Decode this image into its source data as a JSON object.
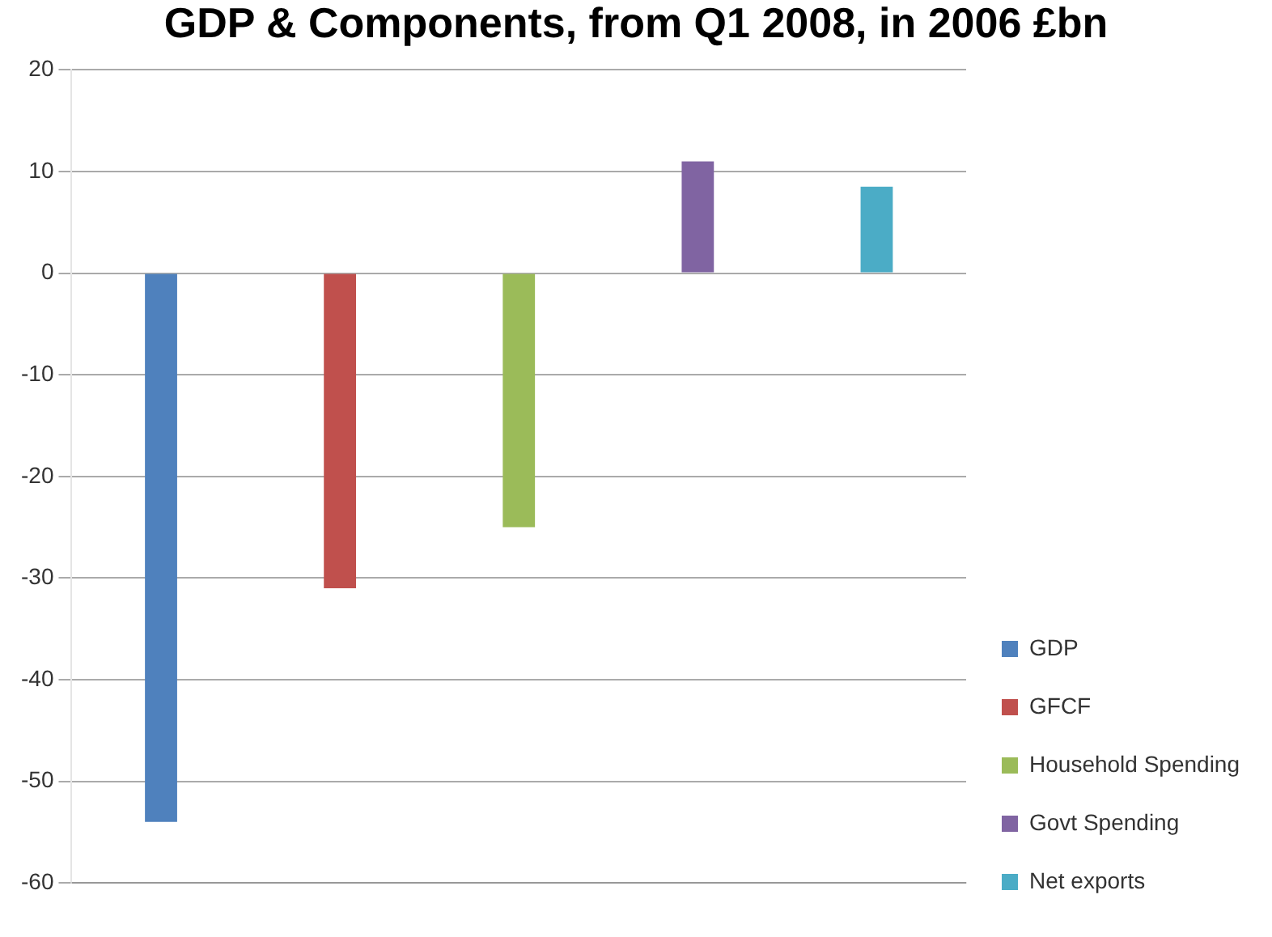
{
  "chart_data": {
    "type": "bar",
    "title": "GDP & Components, from Q1 2008, in 2006 £bn",
    "categories": [
      null,
      null,
      null,
      null,
      null
    ],
    "series": [
      {
        "name": "GDP",
        "color": "#4f81bd",
        "values": [
          -54,
          null,
          null,
          null,
          null
        ]
      },
      {
        "name": "GFCF",
        "color": "#c0504d",
        "values": [
          null,
          -31,
          null,
          null,
          null
        ]
      },
      {
        "name": "Household Spending",
        "color": "#9bbb59",
        "values": [
          null,
          null,
          -25,
          null,
          null
        ]
      },
      {
        "name": "Govt Spending",
        "color": "#8064a2",
        "values": [
          null,
          null,
          null,
          11,
          null
        ]
      },
      {
        "name": "Net exports",
        "color": "#4bacc6",
        "values": [
          null,
          null,
          null,
          null,
          8.5
        ]
      }
    ],
    "ylim": [
      -60,
      20
    ],
    "yticks": [
      -60,
      -50,
      -40,
      -30,
      -20,
      -10,
      0,
      10,
      20
    ],
    "grid": "y",
    "legend": "right"
  }
}
